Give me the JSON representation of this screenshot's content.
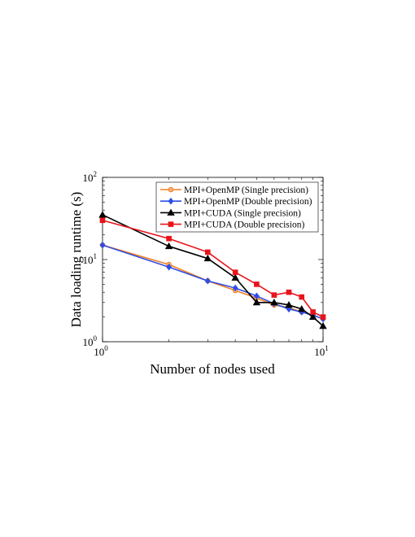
{
  "chart_data": {
    "type": "line",
    "xscale": "log",
    "yscale": "log",
    "xlabel": "Number of nodes used",
    "ylabel": "Data loading runtime (s)",
    "xlim": [
      1,
      10
    ],
    "ylim": [
      1,
      100
    ],
    "xticks": [
      {
        "base": "10",
        "exp": "0",
        "value": 1
      },
      {
        "base": "10",
        "exp": "1",
        "value": 10
      }
    ],
    "yticks": [
      {
        "base": "10",
        "exp": "0",
        "value": 1
      },
      {
        "base": "10",
        "exp": "1",
        "value": 10
      },
      {
        "base": "10",
        "exp": "2",
        "value": 100
      }
    ],
    "grid": false,
    "legend_position": "top-right",
    "x": [
      1,
      2,
      3,
      4,
      5,
      6,
      7,
      8,
      9,
      10
    ],
    "series": [
      {
        "name": "MPI+OpenMP (Single precision)",
        "color": "#f28020",
        "marker": "circle",
        "values": [
          15.0,
          8.7,
          5.5,
          4.2,
          3.4,
          2.8,
          2.6,
          2.3,
          2.1,
          1.9
        ]
      },
      {
        "name": "MPI+OpenMP (Double precision)",
        "color": "#2e4ee6",
        "marker": "diamond",
        "values": [
          15.0,
          8.1,
          5.5,
          4.5,
          3.6,
          2.9,
          2.5,
          2.3,
          2.1,
          1.9
        ]
      },
      {
        "name": "MPI+CUDA (Single precision)",
        "color": "#000000",
        "marker": "triangle",
        "values": [
          35.0,
          14.5,
          10.3,
          6.0,
          3.0,
          3.0,
          2.8,
          2.5,
          2.0,
          1.55
        ]
      },
      {
        "name": "MPI+CUDA (Double precision)",
        "color": "#e8141c",
        "marker": "square",
        "values": [
          30.0,
          18.0,
          12.3,
          7.0,
          5.0,
          3.7,
          4.0,
          3.5,
          2.3,
          2.0
        ]
      }
    ]
  }
}
